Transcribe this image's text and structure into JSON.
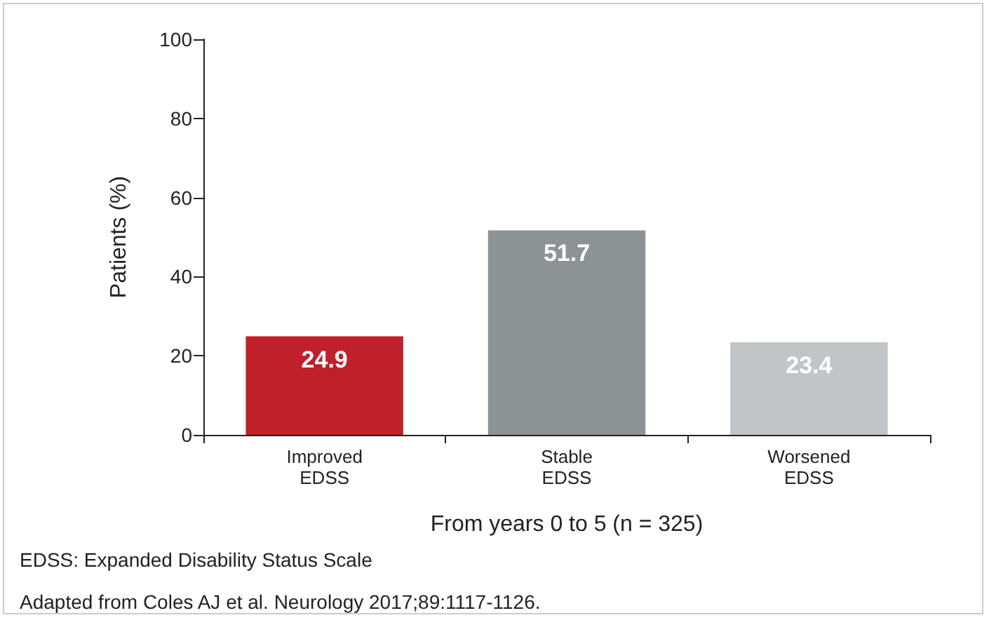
{
  "chart_data": {
    "type": "bar",
    "xlabel": "From years 0 to 5 (n = 325)",
    "ylabel": "Patients (%)",
    "categories": [
      "Improved\nEDSS",
      "Stable\nEDSS",
      "Worsened\nEDSS"
    ],
    "values": [
      24.9,
      51.7,
      23.4
    ],
    "colors": [
      "#c0202a",
      "#8c9395",
      "#c1c5c7"
    ],
    "ylim": [
      0,
      100
    ],
    "yticks": [
      0,
      20,
      40,
      60,
      80,
      100
    ],
    "grid": false,
    "data_labels": true,
    "annotations": [
      "EDSS: Expanded Disability Status Scale",
      "Adapted from Coles AJ et al. Neurology 2017;89:1117-1126."
    ]
  }
}
